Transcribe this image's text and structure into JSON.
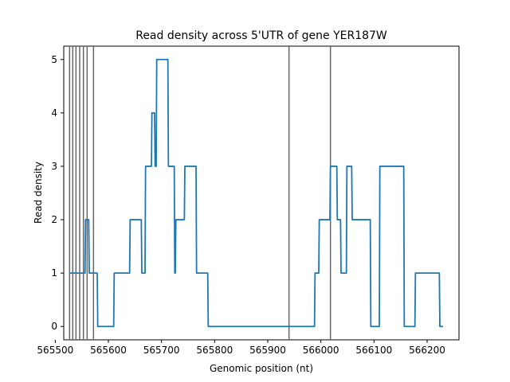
{
  "chart_data": {
    "type": "line",
    "title": "Read density across 5'UTR of gene YER187W",
    "xlabel": "Genomic position (nt)",
    "ylabel": "Read density",
    "xlim": [
      565516,
      566260
    ],
    "ylim": [
      -0.25,
      5.25
    ],
    "xticks": [
      565500,
      565600,
      565700,
      565800,
      565900,
      566000,
      566100,
      566200
    ],
    "yticks": [
      0,
      1,
      2,
      3,
      4,
      5
    ],
    "grid": false,
    "line_color": "#1f77b4",
    "vline_color": "#666666",
    "vlines": [
      565527,
      565533,
      565539,
      565546,
      565553,
      565560,
      565572,
      565940,
      566018
    ],
    "series": [
      {
        "x": [
          565526,
          565556,
          565557,
          565563,
          565564,
          565571,
          565572,
          565579,
          565580,
          565610,
          565611,
          565620,
          565621,
          565640,
          565641,
          565662,
          565663,
          565669,
          565670,
          565681,
          565682,
          565687,
          565688,
          565690,
          565691,
          565712,
          565713,
          565720,
          565721,
          565724,
          565725,
          565726,
          565727,
          565743,
          565744,
          565765,
          565766,
          565787,
          565788,
          565988,
          565989,
          565996,
          565997,
          566017,
          566018,
          566030,
          566031,
          566037,
          566038,
          566048,
          566049,
          566058,
          566059,
          566080,
          566081,
          566093,
          566094,
          566110,
          566111,
          566156,
          566157,
          566177,
          566178,
          566223,
          566224,
          566230
        ],
        "y": [
          1,
          1,
          2,
          2,
          1,
          1,
          1,
          1,
          0,
          0,
          1,
          1,
          1,
          1,
          2,
          2,
          1,
          1,
          3,
          3,
          4,
          4,
          3,
          3,
          5,
          5,
          3,
          3,
          3,
          3,
          1,
          1,
          2,
          2,
          3,
          3,
          1,
          1,
          0,
          0,
          1,
          1,
          2,
          2,
          3,
          3,
          2,
          2,
          1,
          1,
          3,
          3,
          2,
          2,
          2,
          2,
          0,
          0,
          3,
          3,
          0,
          0,
          1,
          1,
          0,
          0
        ]
      }
    ]
  }
}
